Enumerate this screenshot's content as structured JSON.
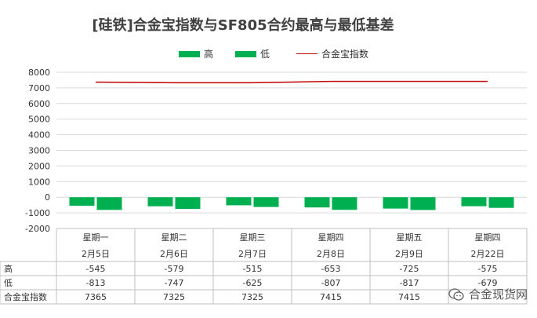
{
  "title": "[硅铁]合金宝指数与SF805合约最高与最低基差",
  "legend": {
    "high": "高",
    "low": "低",
    "index": "合金宝指数"
  },
  "watermark": "合金现货网",
  "colors": {
    "bars": "#00b050",
    "index_line": "#c00000",
    "grid": "#d9d9d9",
    "table_border": "#bfbfbf"
  },
  "chart_data": {
    "type": "bar",
    "title": "[硅铁]合金宝指数与SF805合约最高与最低基差",
    "categories": [
      [
        "星期一",
        "2月5日"
      ],
      [
        "星期二",
        "2月6日"
      ],
      [
        "星期三",
        "2月7日"
      ],
      [
        "星期四",
        "2月8日"
      ],
      [
        "星期五",
        "2月9日"
      ],
      [
        "星期四",
        "2月22日"
      ]
    ],
    "series": [
      {
        "name": "高",
        "type": "bar",
        "values": [
          -545,
          -579,
          -515,
          -653,
          -725,
          -575
        ]
      },
      {
        "name": "低",
        "type": "bar",
        "values": [
          -813,
          -747,
          -625,
          -807,
          -817,
          -679
        ]
      },
      {
        "name": "合金宝指数",
        "type": "line",
        "values": [
          7365,
          7325,
          7325,
          7415,
          7415,
          7415
        ]
      }
    ],
    "table_values": [
      [
        "-545",
        "-579",
        "-515",
        "-653",
        "-725",
        "-575"
      ],
      [
        "-813",
        "-747",
        "-625",
        "-807",
        "-817",
        "-679"
      ],
      [
        "7365",
        "7325",
        "7325",
        "7415",
        "7415",
        ""
      ]
    ],
    "y_ticks": [
      "8000",
      "7000",
      "6000",
      "5000",
      "4000",
      "3000",
      "2000",
      "1000",
      "0",
      "-1000",
      "-2000"
    ],
    "ylim": [
      -2000,
      8000
    ],
    "grid": true,
    "legend_position": "top",
    "data_table": true
  }
}
